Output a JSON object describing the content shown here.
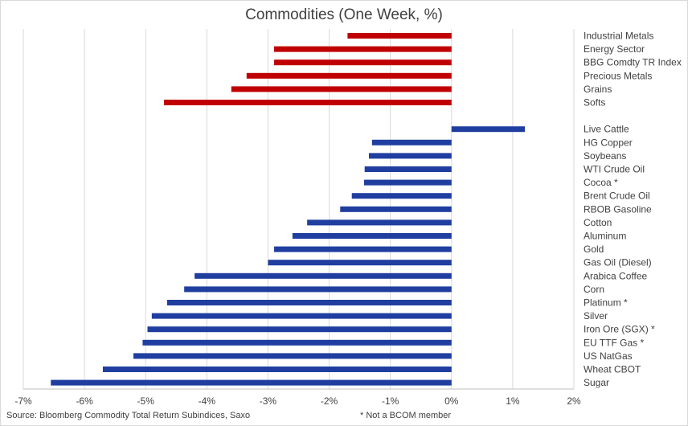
{
  "chart_data": {
    "type": "bar",
    "orientation": "horizontal",
    "title": "Commodities (One Week, %)",
    "xlim": [
      -7,
      2
    ],
    "x_ticks": [
      "-7%",
      "-6%",
      "-5%",
      "-4%",
      "-3%",
      "-2%",
      "-1%",
      "0%",
      "1%",
      "2%"
    ],
    "grid": "vertical",
    "colors": {
      "group_indices": "#c00000",
      "group_commodities": "#1f3ea0"
    },
    "groups": [
      {
        "color": "#c00000",
        "categories": [
          "Industrial Metals",
          "Energy Sector",
          "BBG Comdty TR Index",
          "Precious Metals",
          "Grains",
          "Softs"
        ],
        "values": [
          -1.7,
          -2.9,
          -2.9,
          -3.35,
          -3.6,
          -4.7
        ]
      },
      {
        "color": "#1f3ea0",
        "categories": [
          "Live Cattle",
          "HG Copper",
          "Soybeans",
          "WTI Crude Oil",
          "Cocoa *",
          "Brent Crude Oil",
          "RBOB Gasoline",
          "Cotton",
          "Aluminum",
          "Gold",
          "Gas Oil (Diesel)",
          "Arabica Coffee",
          "Corn",
          "Platinum *",
          "Silver",
          "Iron Ore (SGX) *",
          "EU TTF Gas *",
          "US NatGas",
          "Wheat CBOT",
          "Sugar"
        ],
        "values": [
          1.2,
          -1.3,
          -1.35,
          -1.42,
          -1.43,
          -1.63,
          -1.82,
          -2.36,
          -2.6,
          -2.9,
          -3.0,
          -4.2,
          -4.37,
          -4.65,
          -4.9,
          -4.97,
          -5.05,
          -5.2,
          -5.7,
          -6.55
        ]
      }
    ]
  },
  "footer": {
    "source": "Source: Bloomberg Commodity Total Return Subindices, Saxo",
    "note": "* Not a BCOM member"
  }
}
